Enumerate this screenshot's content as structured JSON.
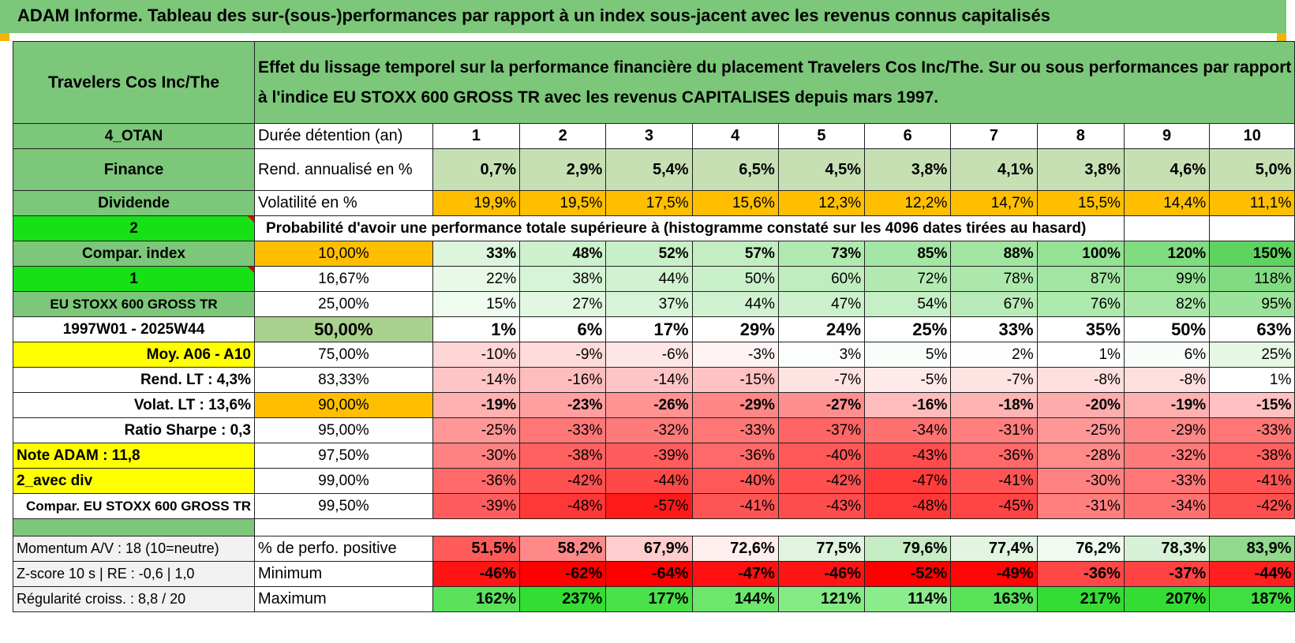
{
  "title": "ADAM Informe. Tableau des sur-(sous-)performances par rapport à un index sous-jacent avec les revenus connus capitalisés",
  "header": {
    "asset": "Travelers Cos Inc/The",
    "description_line1": "Effet du lissage temporel sur la performance financière du placement Travelers Cos Inc/The. Sur ou sous performances par rapport",
    "description_line2": "à l'indice EU STOXX 600 GROSS TR avec les revenus CAPITALISES depuis mars 1997."
  },
  "left_labels": [
    "4_OTAN",
    "Finance",
    "Dividende",
    "2",
    "Compar. index",
    "1",
    "EU STOXX 600 GROSS TR",
    "1997W01 - 2025W44",
    "Moy. A06 - A10",
    "Rend. LT :    4,3%",
    "Volat. LT :    13,6%",
    "Ratio Sharpe :     0,3",
    "Note ADAM : 11,8",
    "2_avec div",
    "Compar. EU STOXX 600 GROSS TR"
  ],
  "holding": {
    "label": "Durée détention (an)",
    "years": [
      "1",
      "2",
      "3",
      "4",
      "5",
      "6",
      "7",
      "8",
      "9",
      "10"
    ]
  },
  "rend": {
    "label": "Rend. annualisé en %",
    "values": [
      "0,7%",
      "2,9%",
      "5,4%",
      "6,5%",
      "4,5%",
      "3,8%",
      "4,1%",
      "3,8%",
      "4,6%",
      "5,0%"
    ]
  },
  "vol": {
    "label": "Volatilité en %",
    "values": [
      "19,9%",
      "19,5%",
      "17,5%",
      "15,6%",
      "12,3%",
      "12,2%",
      "14,7%",
      "15,5%",
      "14,4%",
      "11,1%"
    ]
  },
  "prob_title": "Probabilité d'avoir une performance totale supérieure à (histogramme constaté sur les 4096 dates tirées au hasard)",
  "quantiles": [
    {
      "p": "10,00%",
      "v": [
        "33%",
        "48%",
        "52%",
        "57%",
        "73%",
        "85%",
        "88%",
        "100%",
        "120%",
        "150%"
      ]
    },
    {
      "p": "16,67%",
      "v": [
        "22%",
        "38%",
        "44%",
        "50%",
        "60%",
        "72%",
        "78%",
        "87%",
        "99%",
        "118%"
      ]
    },
    {
      "p": "25,00%",
      "v": [
        "15%",
        "27%",
        "37%",
        "44%",
        "47%",
        "54%",
        "67%",
        "76%",
        "82%",
        "95%"
      ]
    },
    {
      "p": "50,00%",
      "v": [
        "1%",
        "6%",
        "17%",
        "29%",
        "24%",
        "25%",
        "33%",
        "35%",
        "50%",
        "63%"
      ]
    },
    {
      "p": "75,00%",
      "v": [
        "-10%",
        "-9%",
        "-6%",
        "-3%",
        "3%",
        "5%",
        "2%",
        "1%",
        "6%",
        "25%"
      ]
    },
    {
      "p": "83,33%",
      "v": [
        "-14%",
        "-16%",
        "-14%",
        "-15%",
        "-7%",
        "-5%",
        "-7%",
        "-8%",
        "-8%",
        "1%"
      ]
    },
    {
      "p": "90,00%",
      "v": [
        "-19%",
        "-23%",
        "-26%",
        "-29%",
        "-27%",
        "-16%",
        "-18%",
        "-20%",
        "-19%",
        "-15%"
      ]
    },
    {
      "p": "95,00%",
      "v": [
        "-25%",
        "-33%",
        "-32%",
        "-33%",
        "-37%",
        "-34%",
        "-31%",
        "-25%",
        "-29%",
        "-33%"
      ]
    },
    {
      "p": "97,50%",
      "v": [
        "-30%",
        "-38%",
        "-39%",
        "-36%",
        "-40%",
        "-43%",
        "-36%",
        "-28%",
        "-32%",
        "-38%"
      ]
    },
    {
      "p": "99,00%",
      "v": [
        "-36%",
        "-42%",
        "-44%",
        "-40%",
        "-42%",
        "-47%",
        "-41%",
        "-30%",
        "-33%",
        "-41%"
      ]
    },
    {
      "p": "99,50%",
      "v": [
        "-39%",
        "-48%",
        "-57%",
        "-41%",
        "-43%",
        "-48%",
        "-45%",
        "-31%",
        "-34%",
        "-42%"
      ]
    }
  ],
  "bottom": [
    {
      "left": "Momentum A/V : 18 (10=neutre)",
      "label": "% de perfo. positive",
      "v": [
        "51,5%",
        "58,2%",
        "67,9%",
        "72,6%",
        "77,5%",
        "79,6%",
        "77,4%",
        "76,2%",
        "78,3%",
        "83,9%"
      ]
    },
    {
      "left": "Z-score 10 s | RE : -0,6 | 1,0",
      "label": "Minimum",
      "v": [
        "-46%",
        "-62%",
        "-64%",
        "-47%",
        "-46%",
        "-52%",
        "-49%",
        "-36%",
        "-37%",
        "-44%"
      ]
    },
    {
      "left": "Régularité croiss. : 8,8 / 20",
      "label": "Maximum",
      "v": [
        "162%",
        "237%",
        "177%",
        "144%",
        "121%",
        "114%",
        "163%",
        "217%",
        "207%",
        "187%"
      ]
    }
  ],
  "colors": {
    "label_green": "#7cc77a",
    "bright_green": "#16e016",
    "yellow": "#ffff00",
    "orange": "#ffbf00",
    "light_green": "#c6e0b4",
    "red_text": "#e00000"
  }
}
